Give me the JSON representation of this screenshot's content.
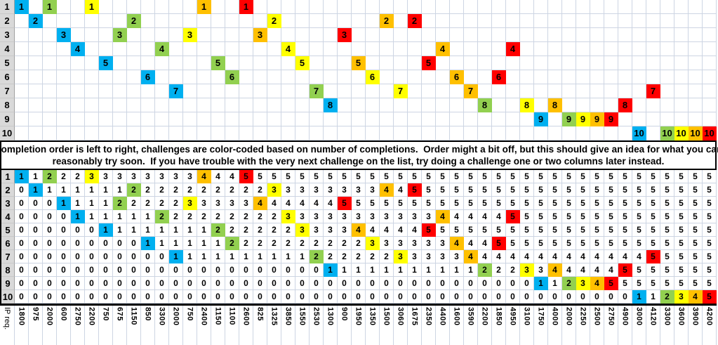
{
  "banner": {
    "line1": "Completion order is left to right, challenges are color-coded based on number of completions.  Order might a bit off, but this should give an idea for what you can",
    "line2": "reasonably try soon.  If you have trouble with the very next challenge on the list, try doing a challenge one or two columns later instead."
  },
  "completion_colors": [
    "#00B0F0",
    "#92D050",
    "#FFFF00",
    "#FFC000",
    "#FF0000"
  ],
  "header_bg": "#d9d9d9",
  "gridline_color": "#cdd5e3",
  "row_headers": [
    "1",
    "2",
    "3",
    "4",
    "5",
    "6",
    "7",
    "8",
    "9",
    "10"
  ],
  "order_challenge": [
    1,
    2,
    1,
    3,
    4,
    1,
    5,
    3,
    2,
    6,
    4,
    7,
    3,
    1,
    5,
    6,
    1,
    3,
    2,
    4,
    5,
    7,
    8,
    3,
    5,
    6,
    2,
    7,
    2,
    5,
    4,
    6,
    7,
    8,
    6,
    4,
    8,
    9,
    8,
    9,
    9,
    9,
    9,
    8,
    10,
    7,
    10,
    10,
    10,
    10
  ],
  "order_completion": [
    1,
    1,
    2,
    1,
    1,
    3,
    1,
    2,
    2,
    1,
    2,
    1,
    3,
    4,
    2,
    2,
    5,
    4,
    3,
    3,
    3,
    2,
    1,
    5,
    4,
    3,
    4,
    3,
    5,
    5,
    4,
    4,
    4,
    2,
    5,
    5,
    3,
    1,
    4,
    2,
    3,
    4,
    5,
    5,
    1,
    5,
    2,
    3,
    4,
    5
  ],
  "cumulative_rows": [
    [
      1,
      1,
      2,
      2,
      2,
      3,
      3,
      3,
      3,
      3,
      3,
      3,
      3,
      4,
      4,
      4,
      5,
      5,
      5,
      5,
      5,
      5,
      5,
      5,
      5,
      5,
      5,
      5,
      5,
      5,
      5,
      5,
      5,
      5,
      5,
      5,
      5,
      5,
      5,
      5,
      5,
      5,
      5,
      5,
      5,
      5,
      5,
      5,
      5,
      5
    ],
    [
      0,
      1,
      1,
      1,
      1,
      1,
      1,
      1,
      2,
      2,
      2,
      2,
      2,
      2,
      2,
      2,
      2,
      2,
      3,
      3,
      3,
      3,
      3,
      3,
      3,
      3,
      4,
      4,
      5,
      5,
      5,
      5,
      5,
      5,
      5,
      5,
      5,
      5,
      5,
      5,
      5,
      5,
      5,
      5,
      5,
      5,
      5,
      5,
      5,
      5
    ],
    [
      0,
      0,
      0,
      1,
      1,
      1,
      1,
      2,
      2,
      2,
      2,
      2,
      3,
      3,
      3,
      3,
      3,
      4,
      4,
      4,
      4,
      4,
      4,
      5,
      5,
      5,
      5,
      5,
      5,
      5,
      5,
      5,
      5,
      5,
      5,
      5,
      5,
      5,
      5,
      5,
      5,
      5,
      5,
      5,
      5,
      5,
      5,
      5,
      5,
      5
    ],
    [
      0,
      0,
      0,
      0,
      1,
      1,
      1,
      1,
      1,
      1,
      2,
      2,
      2,
      2,
      2,
      2,
      2,
      2,
      2,
      3,
      3,
      3,
      3,
      3,
      3,
      3,
      3,
      3,
      3,
      3,
      4,
      4,
      4,
      4,
      4,
      5,
      5,
      5,
      5,
      5,
      5,
      5,
      5,
      5,
      5,
      5,
      5,
      5,
      5,
      5
    ],
    [
      0,
      0,
      0,
      0,
      0,
      0,
      1,
      1,
      1,
      1,
      1,
      1,
      1,
      1,
      2,
      2,
      2,
      2,
      2,
      2,
      3,
      3,
      3,
      3,
      4,
      4,
      4,
      4,
      4,
      5,
      5,
      5,
      5,
      5,
      5,
      5,
      5,
      5,
      5,
      5,
      5,
      5,
      5,
      5,
      5,
      5,
      5,
      5,
      5,
      5
    ],
    [
      0,
      0,
      0,
      0,
      0,
      0,
      0,
      0,
      0,
      1,
      1,
      1,
      1,
      1,
      1,
      2,
      2,
      2,
      2,
      2,
      2,
      2,
      2,
      2,
      2,
      3,
      3,
      3,
      3,
      3,
      3,
      4,
      4,
      4,
      5,
      5,
      5,
      5,
      5,
      5,
      5,
      5,
      5,
      5,
      5,
      5,
      5,
      5,
      5,
      5
    ],
    [
      0,
      0,
      0,
      0,
      0,
      0,
      0,
      0,
      0,
      0,
      0,
      1,
      1,
      1,
      1,
      1,
      1,
      1,
      1,
      1,
      1,
      2,
      2,
      2,
      2,
      2,
      2,
      3,
      3,
      3,
      3,
      3,
      4,
      4,
      4,
      4,
      4,
      4,
      4,
      4,
      4,
      4,
      4,
      4,
      4,
      5,
      5,
      5,
      5,
      5
    ],
    [
      0,
      0,
      0,
      0,
      0,
      0,
      0,
      0,
      0,
      0,
      0,
      0,
      0,
      0,
      0,
      0,
      0,
      0,
      0,
      0,
      0,
      0,
      1,
      1,
      1,
      1,
      1,
      1,
      1,
      1,
      1,
      1,
      1,
      2,
      2,
      2,
      3,
      3,
      4,
      4,
      4,
      4,
      4,
      5,
      5,
      5,
      5,
      5,
      5,
      5
    ],
    [
      0,
      0,
      0,
      0,
      0,
      0,
      0,
      0,
      0,
      0,
      0,
      0,
      0,
      0,
      0,
      0,
      0,
      0,
      0,
      0,
      0,
      0,
      0,
      0,
      0,
      0,
      0,
      0,
      0,
      0,
      0,
      0,
      0,
      0,
      0,
      0,
      0,
      1,
      1,
      2,
      3,
      4,
      5,
      5,
      5,
      5,
      5,
      5,
      5,
      5
    ],
    [
      0,
      0,
      0,
      0,
      0,
      0,
      0,
      0,
      0,
      0,
      0,
      0,
      0,
      0,
      0,
      0,
      0,
      0,
      0,
      0,
      0,
      0,
      0,
      0,
      0,
      0,
      0,
      0,
      0,
      0,
      0,
      0,
      0,
      0,
      0,
      0,
      0,
      0,
      0,
      0,
      0,
      0,
      0,
      0,
      1,
      1,
      2,
      3,
      4,
      5
    ]
  ],
  "ip_req_label": "IP req.",
  "ip_req": [
    "1800",
    "975",
    "2000",
    "600",
    "2750",
    "2200",
    "750",
    "675",
    "1150",
    "850",
    "3300",
    "2000",
    "750",
    "2400",
    "1150",
    "1100",
    "2600",
    "825",
    "1325",
    "3850",
    "1550",
    "2530",
    "1300",
    "900",
    "1950",
    "1350",
    "1500",
    "3060",
    "1675",
    "2350",
    "4400",
    "1600",
    "3590",
    "2200",
    "1850",
    "4950",
    "3100",
    "1750",
    "4000",
    "2000",
    "2250",
    "2500",
    "2750",
    "4900",
    "3000",
    "4120",
    "3300",
    "3600",
    "3900",
    "4200"
  ]
}
